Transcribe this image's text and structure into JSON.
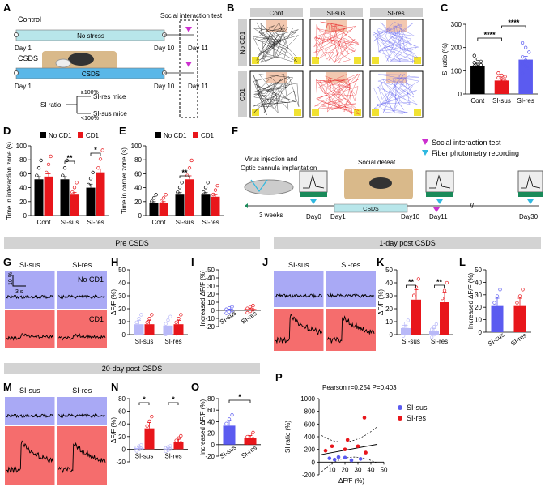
{
  "panels": {
    "A": "A",
    "B": "B",
    "C": "C",
    "D": "D",
    "E": "E",
    "F": "F",
    "G": "G",
    "H": "H",
    "I": "I",
    "J": "J",
    "K": "K",
    "L": "L",
    "M": "M",
    "N": "N",
    "O": "O",
    "P": "P"
  },
  "panel_a": {
    "control": "Control",
    "no_stress": "No stress",
    "csds_label": "CSDS",
    "csds_bar": "CSDS",
    "day1": "Day 1",
    "day10": "Day 10",
    "day11": "Day 11",
    "social_test": "Social interaction test",
    "si_ratio": "SI ratio",
    "ge100": "≥100%",
    "lt100": "<100%",
    "sires": "SI-res mice",
    "sisus": "SI-sus mice"
  },
  "panel_b": {
    "cols": [
      "Cont",
      "SI-sus",
      "SI-res"
    ],
    "rows": [
      "No CD1",
      "CD1"
    ]
  },
  "sections": {
    "pre": "Pre CSDS",
    "post1": "1-day post CSDS",
    "post20": "20-day post CSDS"
  },
  "panel_f": {
    "virus1": "Virus injection and",
    "virus2": "Optic cannula implantation",
    "weeks": "3 weeks",
    "day0": "Day0",
    "day1": "Day1",
    "day10": "Day10",
    "day11": "Day11",
    "day30": "Day30",
    "social_defeat": "Social defeat",
    "csds": "CSDS",
    "legend_social": "Social interaction test",
    "legend_fiber": "Fiber photometry recording"
  },
  "traces": {
    "sisus": "SI-sus",
    "sires": "SI-res",
    "nocd1": "No CD1",
    "cd1": "CD1",
    "scale_y": "10 %",
    "scale_x": "3 s"
  },
  "colors": {
    "black": "#000000",
    "red": "#e8161b",
    "blue": "#5b5bf0",
    "lightblue": "#b9b9f8",
    "trace_blue_bg": "#a9a9f5",
    "trace_red_bg": "#f56d6d",
    "cyan_ctrl": "#b8e6ea",
    "csds_blue": "#5ab7e8",
    "magenta": "#cc2fcf",
    "cyan_marker": "#2fb8e0"
  },
  "chart_data": [
    {
      "id": "C",
      "type": "bar",
      "ylabel": "SI ratio (%)",
      "ylim": [
        0,
        300
      ],
      "yticks": [
        "0",
        "100",
        "200",
        "300"
      ],
      "categories": [
        "Cont",
        "SI-sus",
        "SI-res"
      ],
      "values": [
        120,
        58,
        148
      ],
      "errors": [
        10,
        8,
        14
      ],
      "points": [
        [
          165,
          150,
          140,
          135,
          130,
          125,
          120,
          115,
          110,
          105,
          100,
          95,
          90,
          85
        ],
        [
          90,
          80,
          75,
          70,
          65,
          55,
          50,
          45,
          40,
          30,
          25
        ],
        [
          220,
          200,
          180,
          160,
          145,
          140,
          130,
          120,
          110,
          90
        ]
      ],
      "significance": [
        "****",
        "****"
      ]
    },
    {
      "id": "D",
      "type": "bar",
      "ylabel": "Time in interaction zone (s)",
      "ylim": [
        0,
        100
      ],
      "yticks": [
        "0",
        "20",
        "40",
        "60",
        "80",
        "100"
      ],
      "categories": [
        "Cont",
        "SI-sus",
        "SI-res"
      ],
      "series": [
        {
          "name": "No CD1",
          "values": [
            52,
            52,
            40
          ],
          "errors": [
            4,
            4,
            5
          ]
        },
        {
          "name": "CD1",
          "values": [
            56,
            30,
            62
          ],
          "errors": [
            4,
            3,
            5
          ]
        }
      ],
      "significance": [
        "**",
        "*"
      ]
    },
    {
      "id": "E",
      "type": "bar",
      "ylabel": "Time in corner zone (s)",
      "ylim": [
        0,
        100
      ],
      "yticks": [
        "0",
        "20",
        "40",
        "60",
        "80",
        "100"
      ],
      "categories": [
        "Cont",
        "SI-sus",
        "SI-res"
      ],
      "series": [
        {
          "name": "No CD1",
          "values": [
            18,
            30,
            30
          ],
          "errors": [
            2,
            3,
            3
          ]
        },
        {
          "name": "CD1",
          "values": [
            18,
            52,
            27
          ],
          "errors": [
            2,
            5,
            3
          ]
        }
      ],
      "significance": [
        "**"
      ]
    },
    {
      "id": "H",
      "type": "bar",
      "ylabel": "ΔF/F (%)",
      "ylim": [
        0,
        50
      ],
      "yticks": [
        "0",
        "10",
        "20",
        "30",
        "40",
        "50"
      ],
      "categories": [
        "SI-sus",
        "SI-res"
      ],
      "series": [
        {
          "name": "No CD1",
          "values": [
            8,
            7
          ]
        },
        {
          "name": "CD1",
          "values": [
            8,
            8
          ]
        }
      ]
    },
    {
      "id": "I",
      "type": "bar",
      "ylabel": "Increased ΔF/F (%)",
      "ylim": [
        -20,
        50
      ],
      "yticks": [
        "-20",
        "-10",
        "0",
        "10",
        "20",
        "30",
        "40",
        "50"
      ],
      "categories": [
        "SI-sus",
        "SI-res"
      ],
      "values": [
        0.5,
        1.5
      ]
    },
    {
      "id": "K",
      "type": "bar",
      "ylabel": "ΔF/F (%)",
      "ylim": [
        0,
        50
      ],
      "yticks": [
        "0",
        "10",
        "20",
        "30",
        "40",
        "50"
      ],
      "categories": [
        "SI-sus",
        "SI-res"
      ],
      "series": [
        {
          "name": "No CD1",
          "values": [
            5,
            3
          ]
        },
        {
          "name": "CD1",
          "values": [
            27,
            25
          ]
        }
      ],
      "significance": [
        "**",
        "**"
      ]
    },
    {
      "id": "L",
      "type": "bar",
      "ylabel": "Increased ΔF/F (%)",
      "ylim": [
        0,
        50
      ],
      "yticks": [
        "0",
        "10",
        "20",
        "30",
        "40",
        "50"
      ],
      "categories": [
        "SI-sus",
        "SI-res"
      ],
      "values": [
        21,
        21
      ]
    },
    {
      "id": "N",
      "type": "bar",
      "ylabel": "ΔF/F (%)",
      "ylim": [
        -20,
        80
      ],
      "yticks": [
        "-20",
        "0",
        "20",
        "40",
        "60",
        "80"
      ],
      "categories": [
        "SI-sus",
        "SI-res"
      ],
      "series": [
        {
          "name": "No CD1",
          "values": [
            2,
            1
          ]
        },
        {
          "name": "CD1",
          "values": [
            33,
            12
          ]
        }
      ],
      "significance": [
        "*",
        "*"
      ]
    },
    {
      "id": "O",
      "type": "bar",
      "ylabel": "Increased ΔF/F (%)",
      "ylim": [
        -20,
        80
      ],
      "yticks": [
        "-20",
        "0",
        "20",
        "40",
        "60",
        "80"
      ],
      "categories": [
        "SI-sus",
        "SI-res"
      ],
      "values": [
        33,
        12
      ],
      "significance": [
        "*"
      ]
    },
    {
      "id": "P",
      "type": "scatter",
      "xlabel": "ΔF/F (%)",
      "ylabel": "SI ratio (%)",
      "xlim": [
        0,
        50
      ],
      "ylim": [
        -200,
        1000
      ],
      "xticks": [
        "10",
        "20",
        "30",
        "40",
        "50"
      ],
      "yticks": [
        "-200",
        "0",
        "200",
        "400",
        "600",
        "800",
        "1000"
      ],
      "stats": "Pearson r=0.254    P=0.403",
      "series": [
        {
          "name": "SI-sus",
          "x": [
            8,
            12,
            15,
            20,
            25,
            32
          ],
          "y": [
            60,
            40,
            80,
            70,
            30,
            50
          ]
        },
        {
          "name": "SI-res",
          "x": [
            5,
            10,
            20,
            22,
            30,
            35,
            36
          ],
          "y": [
            180,
            250,
            200,
            350,
            250,
            700,
            150
          ]
        }
      ]
    }
  ]
}
